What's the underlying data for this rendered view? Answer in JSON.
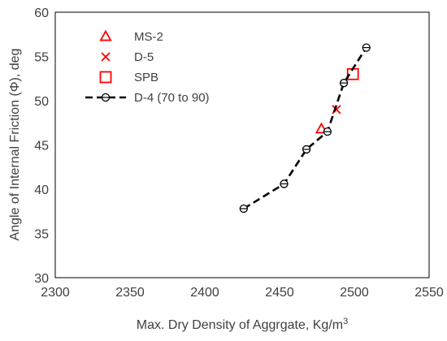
{
  "chart_data": {
    "type": "scatter",
    "xlabel": "Max. Dry Density of Aggrgate, Kg/m",
    "xlabel_sup": "3",
    "ylabel": "Angle of Internal Friction (Φ), deg",
    "xlim": [
      2300,
      2550
    ],
    "ylim": [
      30,
      60
    ],
    "xticks": [
      2300,
      2350,
      2400,
      2450,
      2500,
      2550
    ],
    "yticks": [
      30,
      35,
      40,
      45,
      50,
      55,
      60
    ],
    "grid": false,
    "legend_position": "top-left",
    "series": [
      {
        "name": "MS-2",
        "marker": "triangle-open",
        "color": "#ff0000",
        "line": false,
        "points": [
          {
            "x": 2478,
            "y": 46.8
          }
        ]
      },
      {
        "name": "D-5",
        "marker": "x",
        "color": "#ff0000",
        "line": false,
        "points": [
          {
            "x": 2488,
            "y": 49
          }
        ]
      },
      {
        "name": "SPB",
        "marker": "square-open",
        "color": "#ff0000",
        "line": false,
        "points": [
          {
            "x": 2499,
            "y": 53
          }
        ]
      },
      {
        "name": "D-4 (70 to 90)",
        "marker": "circle-open",
        "color": "#000000",
        "line": true,
        "line_style": "dashed",
        "points": [
          {
            "x": 2426,
            "y": 37.8
          },
          {
            "x": 2453,
            "y": 40.6
          },
          {
            "x": 2468,
            "y": 44.5
          },
          {
            "x": 2482,
            "y": 46.5
          },
          {
            "x": 2493,
            "y": 52
          },
          {
            "x": 2508,
            "y": 56
          }
        ]
      }
    ]
  }
}
